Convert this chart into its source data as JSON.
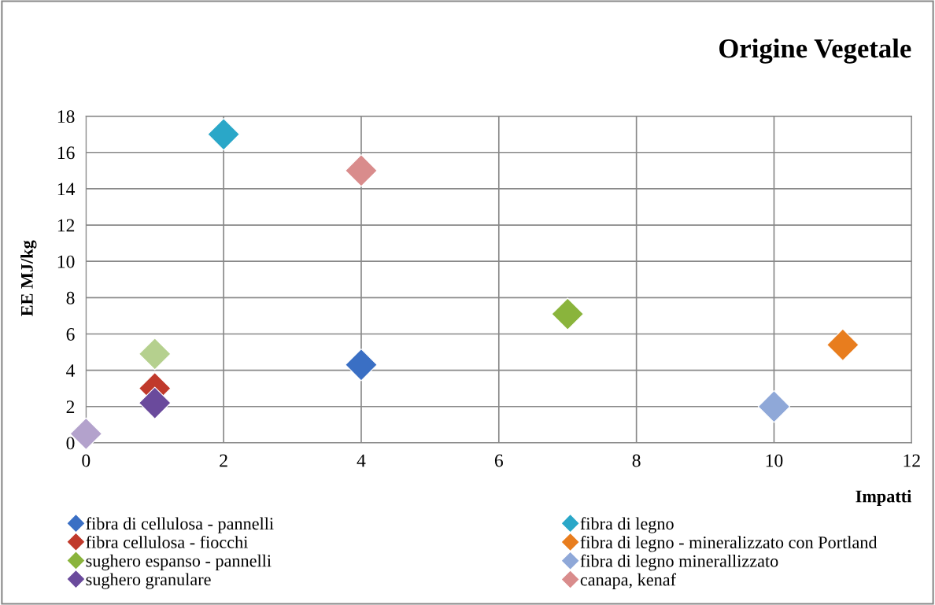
{
  "chart_data": {
    "type": "scatter",
    "title": "Origine Vegetale",
    "xlabel": "Impatti",
    "ylabel": "EE MJ/kg",
    "xlim": [
      0,
      12
    ],
    "xticks": [
      0,
      2,
      4,
      6,
      8,
      10,
      12
    ],
    "ylim": [
      0,
      18
    ],
    "yticks": [
      0,
      2,
      4,
      6,
      8,
      10,
      12,
      14,
      16,
      18
    ],
    "grid": true,
    "legend": "bottom",
    "marker": "diamond",
    "series": [
      {
        "name": "fibra di cellulosa - pannelli",
        "color": "#3a6fc4",
        "x": [
          4
        ],
        "values": [
          4.3
        ]
      },
      {
        "name": "fibra cellulosa - fiocchi",
        "color": "#c0392b",
        "x": [
          1
        ],
        "values": [
          3.0
        ]
      },
      {
        "name": "sughero espanso - pannelli",
        "color": "#8ab43c",
        "x": [
          7
        ],
        "values": [
          7.1
        ]
      },
      {
        "name": "sughero granulare",
        "color": "#6a4a9c",
        "x": [
          1
        ],
        "values": [
          2.2
        ]
      },
      {
        "name": "fibra di legno",
        "color": "#2aa7c8",
        "x": [
          2
        ],
        "values": [
          17.0
        ]
      },
      {
        "name": "fibra di legno - mineralizzato con Portland",
        "color": "#e87d1e",
        "x": [
          11
        ],
        "values": [
          5.4
        ]
      },
      {
        "name": "fibra di legno minerallizzato",
        "color": "#8fa8d8",
        "x": [
          10
        ],
        "values": [
          2.0
        ]
      },
      {
        "name": "canapa, kenaf",
        "color": "#d98c8c",
        "x": [
          4
        ],
        "values": [
          15.0
        ]
      },
      {
        "color": "#b5d08e",
        "x": [
          1
        ],
        "values": [
          4.9
        ]
      },
      {
        "color": "#b3a2cc",
        "x": [
          0
        ],
        "values": [
          0.5
        ]
      }
    ]
  }
}
